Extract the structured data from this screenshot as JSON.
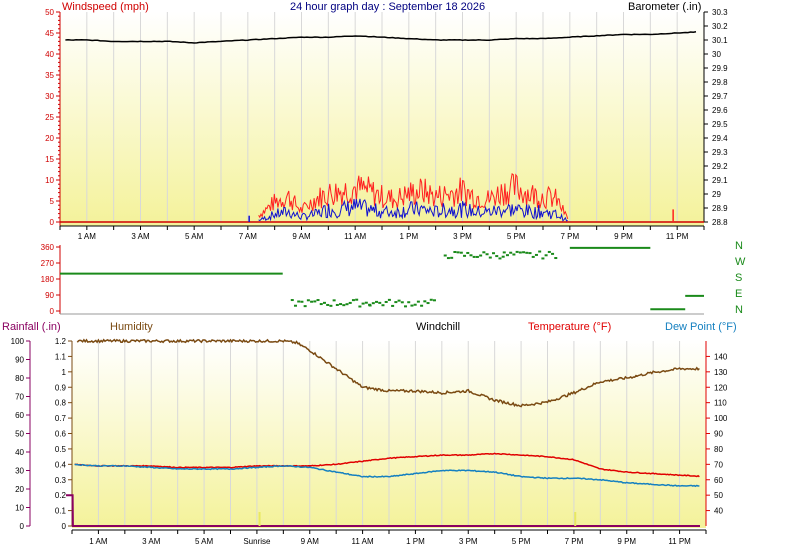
{
  "title": "24 hour graph day : September 18 2026",
  "colors": {
    "windspeed": "#d00000",
    "gust": "#ff2020",
    "wind_avg": "#1010d0",
    "barometer": "#000000",
    "wind_dir": "#1a8a1a",
    "humidity": "#7a4a12",
    "temperature": "#e00000",
    "dewpoint": "#1580c0",
    "rainfall": "#8a0060",
    "axis_left": "#d00000",
    "axis_right": "#000000",
    "plot_bg_top": "#ffffff",
    "plot_bg_bottom": "#f4f29a"
  },
  "chart_data": [
    {
      "type": "line",
      "name": "wind-barometer",
      "title": "24 hour graph day : September 18 2026",
      "ylabel_left": "Windspeed (mph)",
      "ylabel_right": "Barometer (.in)",
      "ylim_left": [
        0,
        50
      ],
      "ylim_right": [
        28.8,
        30.3
      ],
      "yticks_left": [
        "0",
        "5",
        "10",
        "15",
        "20",
        "25",
        "30",
        "35",
        "40",
        "45",
        "50"
      ],
      "yticks_right": [
        "28.8",
        "28.9",
        "29",
        "29.1",
        "29.2",
        "29.3",
        "29.4",
        "29.5",
        "29.6",
        "29.7",
        "29.8",
        "29.9",
        "30",
        "30.1",
        "30.2",
        "30.3"
      ],
      "x_tick_labels": [
        "1 AM",
        "3 AM",
        "5 AM",
        "7 AM",
        "9 AM",
        "11 AM",
        "1 PM",
        "3 PM",
        "5 PM",
        "7 PM",
        "9 PM",
        "11 PM"
      ],
      "x_tick_hours": [
        1,
        3,
        5,
        7,
        9,
        11,
        13,
        15,
        17,
        19,
        21,
        23
      ],
      "xlim_hours": [
        0,
        24
      ],
      "barometer": {
        "hours": [
          0,
          1,
          2,
          3,
          4,
          5,
          6,
          7,
          8,
          9,
          10,
          11,
          12,
          13,
          14,
          15,
          16,
          17,
          18,
          19,
          20,
          21,
          22,
          23,
          24
        ],
        "values": [
          30.1,
          30.1,
          30.09,
          30.09,
          30.09,
          30.08,
          30.09,
          30.1,
          30.11,
          30.12,
          30.12,
          30.13,
          30.12,
          30.11,
          30.1,
          30.1,
          30.1,
          30.11,
          30.11,
          30.12,
          30.13,
          30.14,
          30.14,
          30.15,
          30.16
        ]
      },
      "wind_gust_envelope": {
        "hours": [
          0,
          7,
          7.5,
          8,
          8.5,
          9,
          9.5,
          10,
          10.5,
          11,
          11.5,
          12,
          12.5,
          13,
          13.5,
          14,
          14.5,
          15,
          15.5,
          16,
          16.5,
          17,
          17.5,
          18,
          18.5,
          19,
          24
        ],
        "values": [
          0,
          0,
          3,
          7,
          9,
          4,
          8,
          10,
          11,
          12,
          11,
          9,
          8,
          10,
          11,
          9,
          10,
          11,
          9,
          8,
          11,
          12,
          10,
          9,
          8,
          0,
          0
        ]
      },
      "wind_avg_envelope": {
        "hours": [
          0,
          7,
          7.5,
          8,
          8.5,
          9,
          9.5,
          10,
          10.5,
          11,
          11.5,
          12,
          12.5,
          13,
          13.5,
          14,
          14.5,
          15,
          15.5,
          16,
          16.5,
          17,
          17.5,
          18,
          18.5,
          19,
          24
        ],
        "values": [
          0,
          0,
          1,
          3,
          4,
          2,
          3,
          5,
          5,
          6,
          5,
          4,
          4,
          5,
          5,
          4,
          5,
          5,
          4,
          4,
          5,
          5,
          4,
          4,
          3,
          0,
          0
        ]
      },
      "calm_baseline_mph": 0
    },
    {
      "type": "scatter",
      "name": "wind-direction",
      "ylim": [
        0,
        360
      ],
      "yticks": [
        "0",
        "90",
        "180",
        "270",
        "360"
      ],
      "compass_labels": [
        "N",
        "W",
        "S",
        "E",
        "N"
      ],
      "segments": [
        {
          "from": 0,
          "to": 8.3,
          "value": 210
        },
        {
          "from": 8.6,
          "to": 11.5,
          "value": 45
        },
        {
          "from": 11.5,
          "to": 14,
          "value": 45
        },
        {
          "from": 14.3,
          "to": 16.5,
          "value": 315
        },
        {
          "from": 16.5,
          "to": 18.5,
          "value": 315
        },
        {
          "from": 19,
          "to": 22,
          "value": 355
        },
        {
          "from": 22,
          "to": 23.3,
          "value": 10
        },
        {
          "from": 23.3,
          "to": 24,
          "value": 85
        }
      ]
    },
    {
      "type": "line",
      "name": "humidity-temperature",
      "labels": {
        "rainfall": "Rainfall (.in)",
        "humidity": "Humidity",
        "windchill": "Windchill",
        "temperature": "Temperature (°F)",
        "dewpoint": "Dew Point (°F)"
      },
      "ylim_humidity": [
        0,
        100
      ],
      "yticks_humidity": [
        "0",
        "10",
        "20",
        "30",
        "40",
        "50",
        "60",
        "70",
        "80",
        "90",
        "100"
      ],
      "ylim_rain": [
        0,
        1.2
      ],
      "yticks_rain": [
        "0",
        "0.1",
        "0.2",
        "0.3",
        "0.4",
        "0.5",
        "0.6",
        "0.7",
        "0.8",
        "0.9",
        "1",
        "1.1",
        "1.2"
      ],
      "ylim_temp": [
        30,
        150
      ],
      "yticks_temp": [
        "40",
        "50",
        "60",
        "70",
        "80",
        "90",
        "100",
        "110",
        "120",
        "130",
        "140"
      ],
      "x_tick_labels": [
        "1 AM",
        "3 AM",
        "5 AM",
        "Sunrise",
        "9 AM",
        "11 AM",
        "1 PM",
        "3 PM",
        "5 PM",
        "7 PM",
        "9 PM",
        "11 PM"
      ],
      "x_tick_hours": [
        1,
        3,
        5,
        7,
        9,
        11,
        13,
        15,
        17,
        19,
        21,
        23
      ],
      "xlim_hours": [
        0,
        24
      ],
      "humidity": {
        "hours": [
          0,
          1,
          2,
          3,
          4,
          5,
          6,
          7,
          8,
          8.5,
          9,
          10,
          11,
          12,
          13,
          14,
          15,
          16,
          17,
          18,
          19,
          20,
          21,
          22,
          23,
          24
        ],
        "values": [
          100,
          100,
          100,
          100,
          100,
          100,
          100,
          100,
          100,
          99,
          95,
          85,
          75,
          73,
          73,
          72,
          73,
          68,
          65,
          67,
          72,
          78,
          80,
          83,
          85,
          85
        ]
      },
      "temperature": {
        "hours": [
          0,
          1,
          2,
          3,
          4,
          5,
          6,
          7,
          8,
          9,
          10,
          11,
          12,
          13,
          14,
          15,
          16,
          17,
          18,
          19,
          20,
          21,
          22,
          23,
          24
        ],
        "values": [
          70,
          69,
          69,
          69,
          68,
          68,
          68,
          69,
          69,
          69,
          70,
          72,
          74,
          75,
          76,
          76,
          77,
          76,
          75,
          73,
          67,
          65,
          64,
          63,
          62
        ]
      },
      "dewpoint": {
        "hours": [
          0,
          1,
          2,
          3,
          4,
          5,
          6,
          7,
          8,
          9,
          10,
          11,
          12,
          13,
          14,
          15,
          16,
          17,
          18,
          19,
          20,
          21,
          22,
          23,
          24
        ],
        "values": [
          70,
          69,
          69,
          68,
          67,
          67,
          67,
          68,
          69,
          68,
          65,
          62,
          62,
          64,
          66,
          66,
          65,
          62,
          61,
          61,
          60,
          58,
          57,
          56,
          56
        ]
      },
      "rainfall": {
        "hours": [
          0,
          0.25,
          0.26,
          24
        ],
        "values": [
          0.2,
          0.2,
          0,
          0
        ]
      }
    }
  ]
}
